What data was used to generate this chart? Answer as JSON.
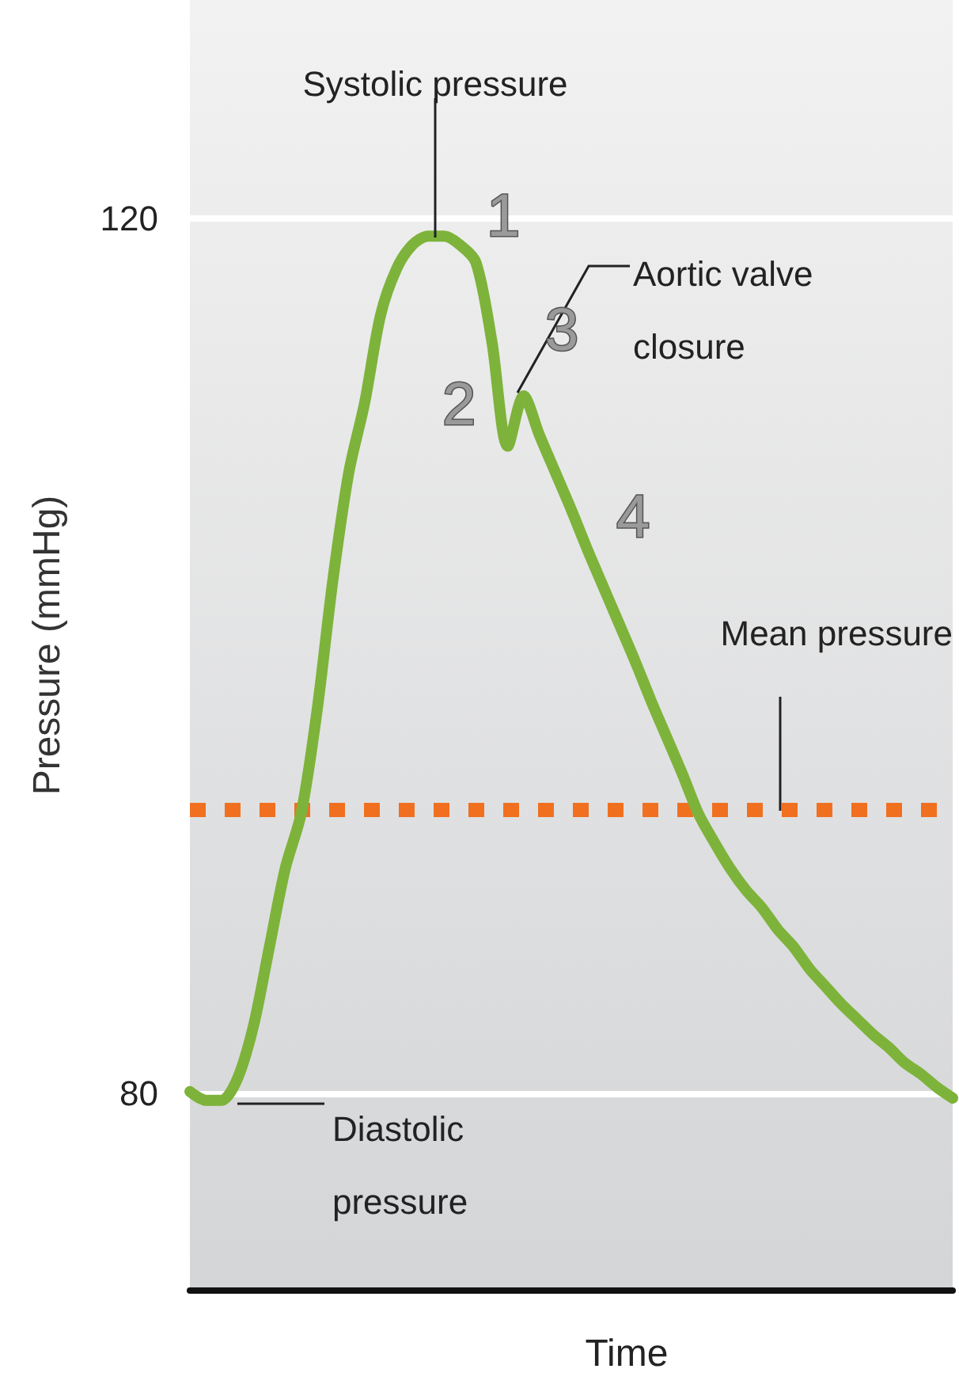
{
  "chart_data": {
    "type": "line",
    "xlabel": "Time",
    "ylabel": "Pressure (mmHg)",
    "categories": [
      null,
      null,
      null,
      null,
      null,
      null,
      null,
      null,
      null,
      null,
      null,
      null,
      null,
      null,
      null,
      null,
      null,
      null,
      null,
      null,
      null,
      null,
      null,
      null,
      null,
      null,
      null,
      null,
      null,
      null,
      null,
      null,
      null,
      null,
      null,
      null,
      null,
      null,
      null,
      null,
      null,
      null,
      null,
      null,
      null,
      null,
      null,
      null,
      null
    ],
    "series": [
      {
        "color": "#7db33a",
        "values": [
          80.1,
          79.7,
          79.7,
          80.7,
          83.1,
          86.7,
          90.3,
          92.8,
          97.5,
          103.5,
          108.4,
          111.6,
          115.6,
          117.7,
          118.8,
          119.2,
          119.2,
          118.8,
          118.0,
          114.4,
          109.6,
          111.9,
          110.1,
          108.4,
          106.7,
          104.9,
          103.2,
          101.5,
          99.8,
          98.0,
          96.3,
          94.6,
          92.8,
          91.5,
          90.3,
          89.3,
          88.5,
          87.5,
          86.7,
          85.7,
          84.9,
          84.1,
          83.4,
          82.7,
          82.1,
          81.4,
          80.9,
          80.3,
          79.8
        ]
      }
    ],
    "ylim": [
      71,
      130
    ],
    "yticks": [
      80,
      120
    ],
    "grid": "y",
    "line_style": "solid",
    "tick_labels": "y",
    "ref_lines": [
      {
        "axis": "y",
        "value": 93,
        "label": "Mean pressure",
        "color": "#f07020",
        "line_style": "dotted"
      }
    ],
    "annotations": [
      "Systolic pressure",
      "Aortic valve closure",
      "Diastolic pressure",
      "1",
      "2",
      "3",
      "4"
    ]
  }
}
